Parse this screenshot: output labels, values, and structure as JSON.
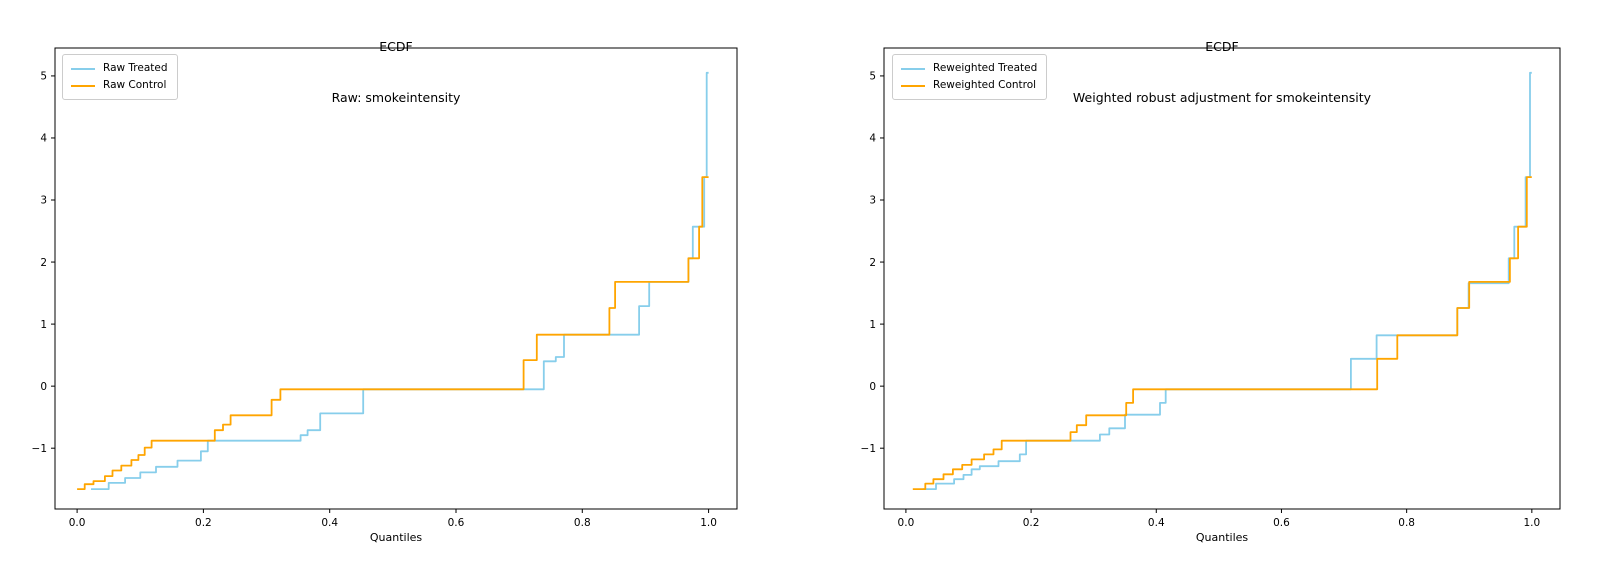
{
  "figure": {
    "background": "#ffffff",
    "text_color": "#000000",
    "spine_color": "#000000"
  },
  "chart_data": [
    {
      "type": "line",
      "step": true,
      "title_line1": "ECDF",
      "title_line2": "Raw: smokeintensity",
      "xlabel": "Quantiles",
      "grid": false,
      "legend_position": "upper-left",
      "xlim": [
        -0.035,
        1.045
      ],
      "ylim": [
        -1.98,
        5.45
      ],
      "x_ticks": [
        0.0,
        0.2,
        0.4,
        0.6,
        0.8,
        1.0
      ],
      "x_tick_labels": [
        "0.0",
        "0.2",
        "0.4",
        "0.6",
        "0.8",
        "1.0"
      ],
      "y_ticks": [
        -1,
        0,
        1,
        2,
        3,
        4,
        5
      ],
      "y_tick_labels": [
        "−1",
        "0",
        "1",
        "2",
        "3",
        "4",
        "5"
      ],
      "series": [
        {
          "name": "Raw Treated",
          "color": "#87CEEB",
          "end_q": 1.0,
          "points": [
            [
              0.022,
              -1.66
            ],
            [
              0.05,
              -1.56
            ],
            [
              0.076,
              -1.48
            ],
            [
              0.1,
              -1.39
            ],
            [
              0.125,
              -1.3
            ],
            [
              0.159,
              -1.2
            ],
            [
              0.196,
              -1.05
            ],
            [
              0.207,
              -0.88
            ],
            [
              0.354,
              -0.79
            ],
            [
              0.365,
              -0.71
            ],
            [
              0.385,
              -0.44
            ],
            [
              0.453,
              -0.05
            ],
            [
              0.739,
              0.4
            ],
            [
              0.758,
              0.47
            ],
            [
              0.771,
              0.83
            ],
            [
              0.89,
              1.29
            ],
            [
              0.906,
              1.68
            ],
            [
              0.968,
              2.06
            ],
            [
              0.975,
              2.57
            ],
            [
              0.993,
              3.37
            ],
            [
              0.997,
              5.05
            ]
          ]
        },
        {
          "name": "Raw Control",
          "color": "#FFA500",
          "end_q": 1.0,
          "points": [
            [
              0.0,
              -1.66
            ],
            [
              0.012,
              -1.58
            ],
            [
              0.026,
              -1.53
            ],
            [
              0.044,
              -1.45
            ],
            [
              0.056,
              -1.36
            ],
            [
              0.07,
              -1.28
            ],
            [
              0.086,
              -1.19
            ],
            [
              0.097,
              -1.11
            ],
            [
              0.107,
              -0.99
            ],
            [
              0.118,
              -0.88
            ],
            [
              0.218,
              -0.71
            ],
            [
              0.231,
              -0.62
            ],
            [
              0.243,
              -0.47
            ],
            [
              0.308,
              -0.22
            ],
            [
              0.322,
              -0.05
            ],
            [
              0.707,
              0.42
            ],
            [
              0.728,
              0.83
            ],
            [
              0.843,
              1.26
            ],
            [
              0.852,
              1.68
            ],
            [
              0.968,
              2.06
            ],
            [
              0.985,
              2.57
            ],
            [
              0.99,
              3.37
            ]
          ]
        }
      ]
    },
    {
      "type": "line",
      "step": true,
      "title_line1": "ECDF",
      "title_line2": "Weighted robust adjustment for smokeintensity",
      "xlabel": "Quantiles",
      "grid": false,
      "legend_position": "upper-left",
      "xlim": [
        -0.035,
        1.045
      ],
      "ylim": [
        -1.98,
        5.45
      ],
      "x_ticks": [
        0.0,
        0.2,
        0.4,
        0.6,
        0.8,
        1.0
      ],
      "x_tick_labels": [
        "0.0",
        "0.2",
        "0.4",
        "0.6",
        "0.8",
        "1.0"
      ],
      "y_ticks": [
        -1,
        0,
        1,
        2,
        3,
        4,
        5
      ],
      "y_tick_labels": [
        "−1",
        "0",
        "1",
        "2",
        "3",
        "4",
        "5"
      ],
      "series": [
        {
          "name": "Reweighted Treated",
          "color": "#87CEEB",
          "end_q": 1.0,
          "points": [
            [
              0.027,
              -1.66
            ],
            [
              0.048,
              -1.57
            ],
            [
              0.077,
              -1.5
            ],
            [
              0.092,
              -1.43
            ],
            [
              0.105,
              -1.34
            ],
            [
              0.118,
              -1.29
            ],
            [
              0.148,
              -1.21
            ],
            [
              0.182,
              -1.1
            ],
            [
              0.192,
              -0.88
            ],
            [
              0.31,
              -0.78
            ],
            [
              0.325,
              -0.68
            ],
            [
              0.35,
              -0.46
            ],
            [
              0.406,
              -0.27
            ],
            [
              0.415,
              -0.05
            ],
            [
              0.711,
              0.44
            ],
            [
              0.752,
              0.82
            ],
            [
              0.881,
              1.26
            ],
            [
              0.899,
              1.66
            ],
            [
              0.963,
              2.06
            ],
            [
              0.972,
              2.57
            ],
            [
              0.99,
              3.37
            ],
            [
              0.997,
              5.05
            ]
          ]
        },
        {
          "name": "Reweighted Control",
          "color": "#FFA500",
          "end_q": 1.0,
          "points": [
            [
              0.011,
              -1.66
            ],
            [
              0.031,
              -1.57
            ],
            [
              0.044,
              -1.5
            ],
            [
              0.06,
              -1.42
            ],
            [
              0.075,
              -1.34
            ],
            [
              0.09,
              -1.27
            ],
            [
              0.105,
              -1.18
            ],
            [
              0.125,
              -1.1
            ],
            [
              0.14,
              -1.02
            ],
            [
              0.153,
              -0.88
            ],
            [
              0.263,
              -0.74
            ],
            [
              0.273,
              -0.63
            ],
            [
              0.288,
              -0.47
            ],
            [
              0.352,
              -0.27
            ],
            [
              0.363,
              -0.05
            ],
            [
              0.753,
              0.44
            ],
            [
              0.785,
              0.82
            ],
            [
              0.881,
              1.26
            ],
            [
              0.9,
              1.68
            ],
            [
              0.965,
              2.06
            ],
            [
              0.978,
              2.57
            ],
            [
              0.992,
              3.37
            ]
          ]
        }
      ]
    }
  ]
}
